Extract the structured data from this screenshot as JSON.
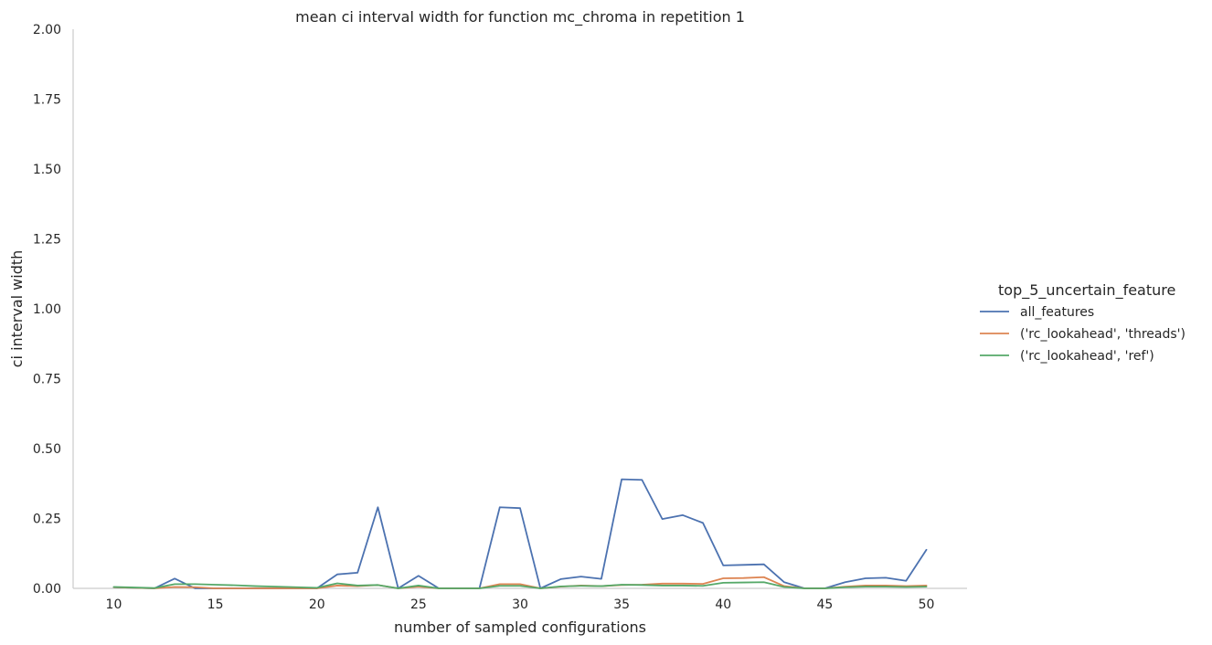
{
  "chart_data": {
    "type": "line",
    "title": "mean ci interval width for function mc_chroma in repetition 1",
    "xlabel": "number of sampled configurations",
    "ylabel": "ci interval width",
    "xlim": [
      8,
      52
    ],
    "ylim": [
      0,
      2
    ],
    "xticks": [
      10,
      15,
      20,
      25,
      30,
      35,
      40,
      45,
      50
    ],
    "yticks": [
      0.0,
      0.25,
      0.5,
      0.75,
      1.0,
      1.25,
      1.5,
      1.75,
      2.0
    ],
    "ytick_labels": [
      "0.00",
      "0.25",
      "0.50",
      "0.75",
      "1.00",
      "1.25",
      "1.50",
      "1.75",
      "2.00"
    ],
    "grid": false,
    "legend": {
      "title": "top_5_uncertain_feature",
      "placement": "right"
    },
    "series": [
      {
        "name": "all_features",
        "color": "#4c72b0",
        "x": [
          10,
          11,
          12,
          13,
          14,
          15,
          16,
          17,
          18,
          19,
          20,
          21,
          22,
          23,
          24,
          25,
          26,
          27,
          28,
          29,
          30,
          31,
          32,
          33,
          34,
          35,
          36,
          37,
          38,
          39,
          40,
          41,
          42,
          43,
          44,
          45,
          46,
          47,
          48,
          49,
          50
        ],
        "y": [
          0.004,
          0.002,
          0.0,
          0.035,
          0.0,
          0.0,
          0.0,
          0.0,
          0.0,
          0.0,
          0.0,
          0.05,
          0.056,
          0.29,
          0.0,
          0.045,
          0.0,
          0.0,
          0.0,
          0.29,
          0.287,
          0.0,
          0.033,
          0.042,
          0.034,
          0.39,
          0.388,
          0.248,
          0.262,
          0.234,
          0.082,
          0.084,
          0.086,
          0.022,
          0.0,
          0.0,
          0.022,
          0.036,
          0.038,
          0.027,
          0.138
        ]
      },
      {
        "name": "('rc_lookahead', 'threads')",
        "color": "#dd8452",
        "x": [
          10,
          11,
          12,
          13,
          14,
          15,
          16,
          17,
          18,
          19,
          20,
          21,
          22,
          23,
          24,
          25,
          26,
          27,
          28,
          29,
          30,
          31,
          32,
          33,
          34,
          35,
          36,
          37,
          38,
          39,
          40,
          41,
          42,
          43,
          44,
          45,
          46,
          47,
          48,
          49,
          50
        ],
        "y": [
          0.004,
          0.002,
          0.0,
          0.005,
          0.004,
          0.0,
          0.0,
          0.0,
          0.0,
          0.0,
          0.0,
          0.01,
          0.008,
          0.012,
          0.0,
          0.006,
          0.0,
          0.0,
          0.0,
          0.015,
          0.015,
          0.0,
          0.006,
          0.01,
          0.008,
          0.012,
          0.013,
          0.017,
          0.017,
          0.016,
          0.036,
          0.037,
          0.04,
          0.008,
          0.0,
          0.0,
          0.006,
          0.01,
          0.01,
          0.008,
          0.01
        ]
      },
      {
        "name": "('rc_lookahead', 'ref')",
        "color": "#55a868",
        "x": [
          10,
          11,
          12,
          13,
          14,
          15,
          16,
          17,
          18,
          19,
          20,
          21,
          22,
          23,
          24,
          25,
          26,
          27,
          28,
          29,
          30,
          31,
          32,
          33,
          34,
          35,
          36,
          37,
          38,
          39,
          40,
          41,
          42,
          43,
          44,
          45,
          46,
          47,
          48,
          49,
          50
        ],
        "y": [
          0.005,
          0.003,
          0.001,
          0.015,
          0.015,
          0.013,
          0.011,
          0.008,
          0.006,
          0.004,
          0.002,
          0.018,
          0.01,
          0.012,
          0.0,
          0.01,
          0.0,
          0.0,
          0.0,
          0.009,
          0.009,
          0.0,
          0.007,
          0.009,
          0.008,
          0.013,
          0.012,
          0.01,
          0.01,
          0.009,
          0.02,
          0.021,
          0.022,
          0.005,
          0.0,
          0.0,
          0.004,
          0.006,
          0.006,
          0.005,
          0.006
        ]
      }
    ]
  }
}
